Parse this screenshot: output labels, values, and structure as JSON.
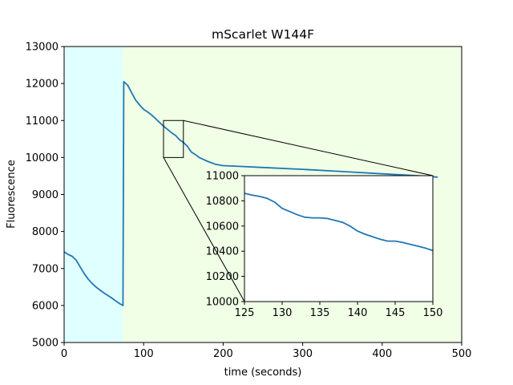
{
  "chart_data": [
    {
      "type": "line",
      "title": "mScarlet W144F",
      "xlabel": "time (seconds)",
      "ylabel": "Fluorescence",
      "xlim": [
        0,
        500
      ],
      "ylim": [
        5000,
        13000
      ],
      "x_ticks": [
        "0",
        "100",
        "200",
        "300",
        "400",
        "500"
      ],
      "y_ticks": [
        "5000",
        "6000",
        "7000",
        "8000",
        "9000",
        "10000",
        "11000",
        "12000",
        "13000"
      ],
      "grid": false,
      "background_regions": [
        {
          "x": [
            0,
            74
          ],
          "color": "#e0ffff"
        },
        {
          "x": [
            74,
            500
          ],
          "color": "#f0ffe6"
        }
      ],
      "series": [
        {
          "color": "#1f77b4",
          "x": [
            0,
            5,
            10,
            15,
            20,
            25,
            30,
            35,
            40,
            45,
            50,
            55,
            60,
            65,
            70,
            74,
            75,
            80,
            85,
            90,
            95,
            100,
            105,
            110,
            115,
            120,
            125,
            130,
            135,
            140,
            145,
            150,
            155,
            160,
            165,
            170,
            175,
            180,
            190,
            200,
            220,
            250,
            300,
            350,
            400,
            450,
            470
          ],
          "y": [
            7450,
            7380,
            7330,
            7230,
            7050,
            6870,
            6720,
            6600,
            6500,
            6420,
            6340,
            6270,
            6200,
            6120,
            6050,
            6000,
            12050,
            11950,
            11750,
            11550,
            11420,
            11300,
            11230,
            11150,
            11050,
            10950,
            10850,
            10760,
            10670,
            10600,
            10480,
            10410,
            10300,
            10150,
            10080,
            10000,
            9950,
            9900,
            9820,
            9780,
            9760,
            9730,
            9680,
            9620,
            9560,
            9500,
            9470
          ]
        }
      ],
      "zoom_box": {
        "x": [
          125,
          150
        ],
        "y": [
          10000,
          11000
        ]
      }
    },
    {
      "type": "line",
      "title": "",
      "xlim": [
        125,
        150
      ],
      "ylim": [
        10000,
        11000
      ],
      "x_ticks": [
        "125",
        "130",
        "135",
        "140",
        "145",
        "150"
      ],
      "y_ticks": [
        "10000",
        "10200",
        "10400",
        "10600",
        "10800",
        "11000"
      ],
      "series": [
        {
          "color": "#1f77b4",
          "x": [
            125,
            126,
            127,
            128,
            129,
            130,
            131,
            132,
            133,
            134,
            135,
            136,
            137,
            138,
            139,
            140,
            141,
            142,
            143,
            144,
            145,
            146,
            147,
            148,
            149,
            150
          ],
          "y": [
            10860,
            10845,
            10835,
            10820,
            10790,
            10740,
            10715,
            10690,
            10670,
            10665,
            10665,
            10660,
            10645,
            10630,
            10600,
            10560,
            10535,
            10515,
            10495,
            10480,
            10480,
            10470,
            10455,
            10440,
            10425,
            10405
          ]
        }
      ]
    }
  ]
}
